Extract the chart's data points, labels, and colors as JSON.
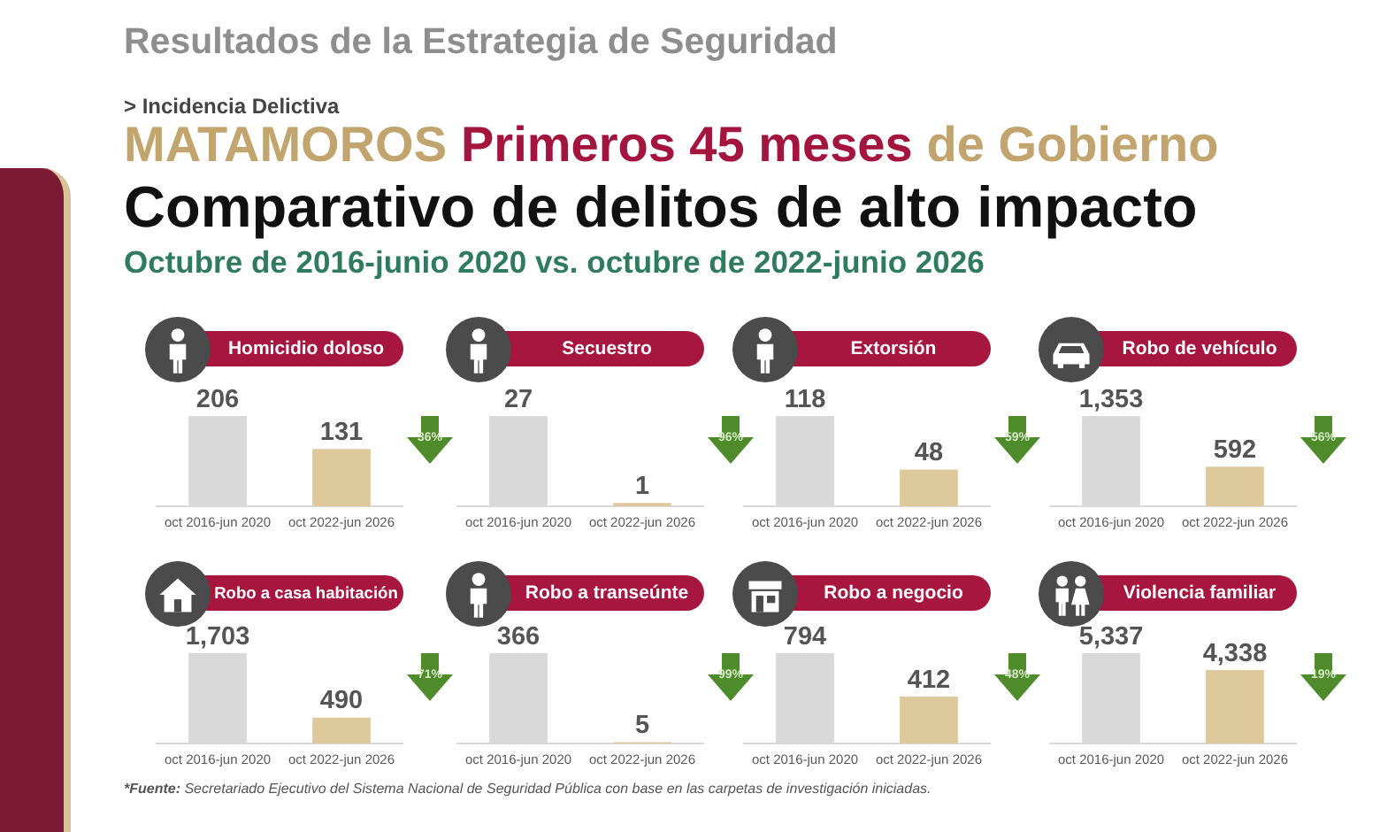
{
  "chart_data": [
    {
      "type": "other",
      "title": "Comparativo de delitos de alto impacto",
      "subtitle": "Octubre de 2016-junio 2020 vs. octubre de 2022-junio 2026",
      "annotations": [
        "Resultados de la Estrategia de Seguridad",
        "> Incidencia Delictiva",
        "MATAMOROS",
        "Primeros 45 meses",
        "de Gobierno",
        "*Fuente: Secretariado Ejecutivo del Sistema Nacional de Seguridad Pública con base en las carpetas de investigación iniciadas."
      ]
    },
    {
      "type": "bar",
      "title": "Homicidio doloso",
      "categories": [
        "oct 2016-jun 2020",
        "oct 2022-jun 2026"
      ],
      "values": [
        206,
        131
      ],
      "value_labels": [
        "206",
        "131"
      ],
      "colors": [
        "#d9d9d9",
        "#dec99c"
      ],
      "tick_labels": "x",
      "annotations": [
        "36%"
      ]
    },
    {
      "type": "bar",
      "title": "Secuestro",
      "categories": [
        "oct 2016-jun 2020",
        "oct 2022-jun 2026"
      ],
      "values": [
        27,
        1
      ],
      "value_labels": [
        "27",
        "1"
      ],
      "colors": [
        "#d9d9d9",
        "#dec99c"
      ],
      "tick_labels": "x",
      "annotations": [
        "96%"
      ]
    },
    {
      "type": "bar",
      "title": "Extorsión",
      "categories": [
        "oct 2016-jun 2020",
        "oct 2022-jun 2026"
      ],
      "values": [
        118,
        48
      ],
      "value_labels": [
        "118",
        "48"
      ],
      "colors": [
        "#d9d9d9",
        "#dec99c"
      ],
      "tick_labels": "x",
      "annotations": [
        "59%"
      ]
    },
    {
      "type": "bar",
      "title": "Robo de vehículo",
      "categories": [
        "oct 2016-jun 2020",
        "oct 2022-jun 2026"
      ],
      "values": [
        1353,
        592
      ],
      "value_labels": [
        "1,353",
        "592"
      ],
      "colors": [
        "#d9d9d9",
        "#dec99c"
      ],
      "tick_labels": "x",
      "annotations": [
        "56%"
      ]
    },
    {
      "type": "bar",
      "title": "Robo a casa habitación",
      "categories": [
        "oct 2016-jun 2020",
        "oct 2022-jun 2026"
      ],
      "values": [
        1703,
        490
      ],
      "value_labels": [
        "1,703",
        "490"
      ],
      "colors": [
        "#d9d9d9",
        "#dec99c"
      ],
      "tick_labels": "x",
      "annotations": [
        "71%"
      ]
    },
    {
      "type": "bar",
      "title": "Robo a transeúnte",
      "categories": [
        "oct 2016-jun 2020",
        "oct 2022-jun 2026"
      ],
      "values": [
        366,
        5
      ],
      "value_labels": [
        "366",
        "5"
      ],
      "colors": [
        "#d9d9d9",
        "#dec99c"
      ],
      "tick_labels": "x",
      "annotations": [
        "99%"
      ]
    },
    {
      "type": "bar",
      "title": "Robo a negocio",
      "categories": [
        "oct 2016-jun 2020",
        "oct 2022-jun 2026"
      ],
      "values": [
        794,
        412
      ],
      "value_labels": [
        "794",
        "412"
      ],
      "colors": [
        "#d9d9d9",
        "#dec99c"
      ],
      "tick_labels": "x",
      "annotations": [
        "48%"
      ]
    },
    {
      "type": "bar",
      "title": "Violencia familiar",
      "categories": [
        "oct 2016-jun 2020",
        "oct 2022-jun 2026"
      ],
      "values": [
        5337,
        4338
      ],
      "value_labels": [
        "5,337",
        "4,338"
      ],
      "colors": [
        "#d9d9d9",
        "#dec99c"
      ],
      "tick_labels": "x",
      "annotations": [
        "19%"
      ]
    }
  ]
}
